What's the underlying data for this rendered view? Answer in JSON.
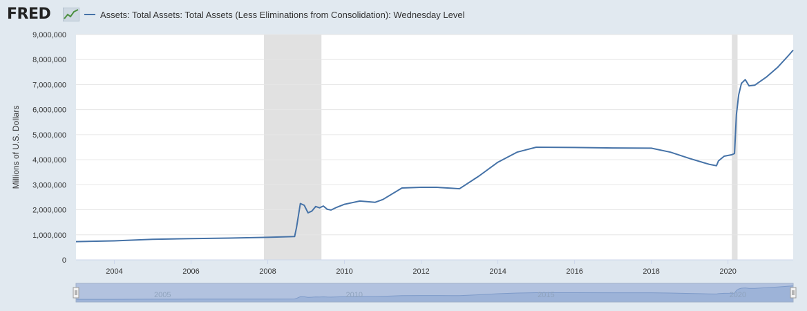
{
  "logo": {
    "text": "FRED"
  },
  "legend": {
    "label": "Assets: Total Assets: Total Assets (Less Eliminations from Consolidation): Wednesday Level"
  },
  "colors": {
    "series": "#4572a7",
    "recession": "#e1e1e1",
    "background": "#e1e9f0",
    "plot_bg": "#ffffff"
  },
  "chart_data": {
    "type": "line",
    "ylabel": "Millions of U.S. Dollars",
    "xlim": [
      2003.0,
      2021.7
    ],
    "ylim": [
      0,
      9000000
    ],
    "x_ticks": [
      2004,
      2006,
      2008,
      2010,
      2012,
      2014,
      2016,
      2018,
      2020
    ],
    "y_ticks": [
      0,
      1000000,
      2000000,
      3000000,
      4000000,
      5000000,
      6000000,
      7000000,
      8000000,
      9000000
    ],
    "y_tick_labels": [
      "0",
      "1,000,000",
      "2,000,000",
      "3,000,000",
      "4,000,000",
      "5,000,000",
      "6,000,000",
      "7,000,000",
      "8,000,000",
      "9,000,000"
    ],
    "recessions": [
      [
        2007.9,
        2009.4
      ],
      [
        2020.1,
        2020.25
      ]
    ],
    "grid": true,
    "navigator": {
      "labels": [
        "2005",
        "2010",
        "2015",
        "2020"
      ],
      "label_years": [
        2005,
        2010,
        2015,
        2020
      ]
    },
    "series": [
      {
        "name": "Assets: Total Assets: Total Assets (Less Eliminations from Consolidation): Wednesday Level",
        "x": [
          2003.0,
          2004.0,
          2005.0,
          2006.0,
          2007.0,
          2008.0,
          2008.7,
          2008.75,
          2008.85,
          2008.95,
          2009.05,
          2009.15,
          2009.25,
          2009.35,
          2009.45,
          2009.55,
          2009.65,
          2009.8,
          2010.0,
          2010.4,
          2010.8,
          2011.0,
          2011.5,
          2012.0,
          2012.4,
          2012.8,
          2013.0,
          2013.5,
          2014.0,
          2014.5,
          2015.0,
          2016.0,
          2017.0,
          2018.0,
          2018.5,
          2019.0,
          2019.5,
          2019.7,
          2019.75,
          2019.9,
          2020.1,
          2020.17,
          2020.22,
          2020.28,
          2020.35,
          2020.45,
          2020.55,
          2020.7,
          2021.0,
          2021.3,
          2021.6,
          2021.7
        ],
        "values": [
          730000,
          760000,
          820000,
          850000,
          870000,
          900000,
          930000,
          1300000,
          2250000,
          2180000,
          1880000,
          1950000,
          2130000,
          2080000,
          2150000,
          2020000,
          1990000,
          2100000,
          2220000,
          2350000,
          2300000,
          2410000,
          2870000,
          2900000,
          2900000,
          2860000,
          2840000,
          3340000,
          3900000,
          4300000,
          4500000,
          4490000,
          4470000,
          4460000,
          4300000,
          4050000,
          3820000,
          3760000,
          3950000,
          4140000,
          4200000,
          4250000,
          5800000,
          6600000,
          7050000,
          7200000,
          6950000,
          6980000,
          7300000,
          7700000,
          8200000,
          8380000
        ]
      }
    ]
  }
}
